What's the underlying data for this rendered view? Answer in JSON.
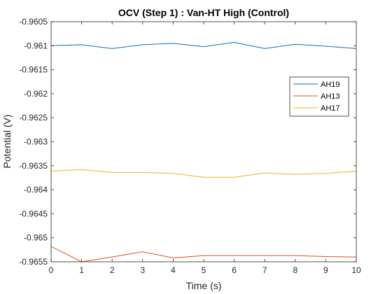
{
  "chart_data": {
    "type": "line",
    "title": "OCV (Step 1) : Van-HT High (Control)",
    "xlabel": "Time (s)",
    "ylabel": "Potential (V)",
    "xlim": [
      0,
      10
    ],
    "ylim": [
      -0.9655,
      -0.9605
    ],
    "x": [
      0,
      1,
      2,
      3,
      4,
      5,
      6,
      7,
      8,
      9,
      10
    ],
    "xticks": [
      "0",
      "1",
      "2",
      "3",
      "4",
      "5",
      "6",
      "7",
      "8",
      "9",
      "10"
    ],
    "yticks": [
      "-0.9605",
      "-0.961",
      "-0.9615",
      "-0.962",
      "-0.9625",
      "-0.963",
      "-0.9635",
      "-0.964",
      "-0.9645",
      "-0.965",
      "-0.9655"
    ],
    "ytick_values": [
      -0.9605,
      -0.961,
      -0.9615,
      -0.962,
      -0.9625,
      -0.963,
      -0.9635,
      -0.964,
      -0.9645,
      -0.965,
      -0.9655
    ],
    "grid": false,
    "legend_position": "top-right",
    "series": [
      {
        "name": "AH19",
        "color": "#0072BD",
        "values": [
          -0.961,
          -0.96098,
          -0.96106,
          -0.96098,
          -0.96095,
          -0.96102,
          -0.96093,
          -0.96106,
          -0.96097,
          -0.96101,
          -0.96106
        ]
      },
      {
        "name": "AH13",
        "color": "#D95319",
        "values": [
          -0.96518,
          -0.9655,
          -0.9654,
          -0.96529,
          -0.96542,
          -0.96537,
          -0.96537,
          -0.96537,
          -0.96537,
          -0.96539,
          -0.9654
        ]
      },
      {
        "name": "AH17",
        "color": "#EDB120",
        "values": [
          -0.96361,
          -0.96358,
          -0.96364,
          -0.96364,
          -0.96366,
          -0.96374,
          -0.96374,
          -0.96365,
          -0.96368,
          -0.96366,
          -0.96361
        ]
      }
    ]
  }
}
